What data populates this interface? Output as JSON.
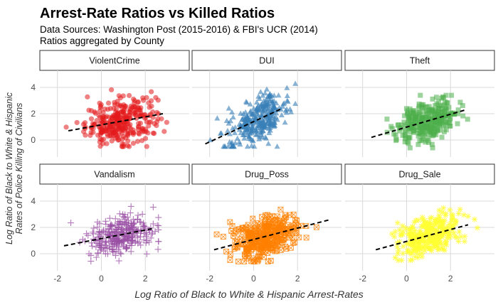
{
  "chart_data": {
    "type": "scatter",
    "title": "Arrest-Rate Ratios vs Killed Ratios",
    "subtitle_lines": [
      "Data Sources:  Washington Post (2015-2016) & FBI's UCR (2014)",
      "Ratios aggregated by County"
    ],
    "xlabel": "Log Ratio of Black to White & Hispanic Arrest-Rates",
    "ylabel_lines": [
      "Log Ratio of Black to White & Hispanic",
      "Rates of Police Killing of Civilians"
    ],
    "xlim": [
      -2.8,
      4.0
    ],
    "ylim": [
      -1.3,
      5.3
    ],
    "x_ticks": [
      -2,
      0,
      2
    ],
    "y_ticks": [
      0,
      2,
      4
    ],
    "grid": true,
    "legend": "none",
    "panels": [
      {
        "name": "ViolentCrime",
        "color": "#e41a1c",
        "shape": "circle",
        "x_center": 0.9,
        "x_sd": 0.8,
        "y_center": 1.3,
        "y_sd": 1.0,
        "x_range": [
          -1.6,
          3.0
        ],
        "y_range": [
          -0.5,
          4.5
        ],
        "n_points": 320,
        "trend": {
          "x0": -1.5,
          "y0": 0.7,
          "x1": 2.8,
          "y1": 2.0
        }
      },
      {
        "name": "DUI",
        "color": "#377eb8",
        "shape": "triangle",
        "x_center": 0.2,
        "x_sd": 0.7,
        "y_center": 1.2,
        "y_sd": 1.0,
        "x_range": [
          -2.3,
          1.9
        ],
        "y_range": [
          -0.5,
          4.5
        ],
        "n_points": 300,
        "trend": {
          "x0": -2.2,
          "y0": -0.3,
          "x1": 1.3,
          "y1": 2.4
        }
      },
      {
        "name": "Theft",
        "color": "#4daf4a",
        "shape": "square",
        "x_center": 1.0,
        "x_sd": 0.7,
        "y_center": 1.2,
        "y_sd": 0.9,
        "x_range": [
          -1.7,
          3.0
        ],
        "y_range": [
          -0.6,
          3.4
        ],
        "n_points": 300,
        "trend": {
          "x0": -1.6,
          "y0": 0.2,
          "x1": 2.7,
          "y1": 2.3
        }
      },
      {
        "name": "Vandalism",
        "color": "#984ea3",
        "shape": "plus",
        "x_center": 0.9,
        "x_sd": 0.8,
        "y_center": 1.3,
        "y_sd": 0.9,
        "x_range": [
          -1.8,
          2.6
        ],
        "y_range": [
          -0.6,
          3.6
        ],
        "n_points": 300,
        "trend": {
          "x0": -1.7,
          "y0": 0.6,
          "x1": 2.3,
          "y1": 1.9
        }
      },
      {
        "name": "Drug_Poss",
        "color": "#ff7f00",
        "shape": "square-cross",
        "x_center": 0.5,
        "x_sd": 0.7,
        "y_center": 1.2,
        "y_sd": 0.9,
        "x_range": [
          -1.8,
          3.6
        ],
        "y_range": [
          -0.6,
          4.8
        ],
        "n_points": 330,
        "trend": {
          "x0": -1.8,
          "y0": 0.3,
          "x1": 3.5,
          "y1": 2.6
        }
      },
      {
        "name": "Drug_Sale",
        "color": "#ffff33",
        "shape": "asterisk",
        "x_center": 1.0,
        "x_sd": 0.7,
        "y_center": 1.4,
        "y_sd": 0.9,
        "x_range": [
          -1.5,
          3.3
        ],
        "y_range": [
          -0.5,
          4.7
        ],
        "n_points": 320,
        "trend": {
          "x0": -1.4,
          "y0": 0.3,
          "x1": 2.8,
          "y1": 2.2
        }
      }
    ]
  }
}
